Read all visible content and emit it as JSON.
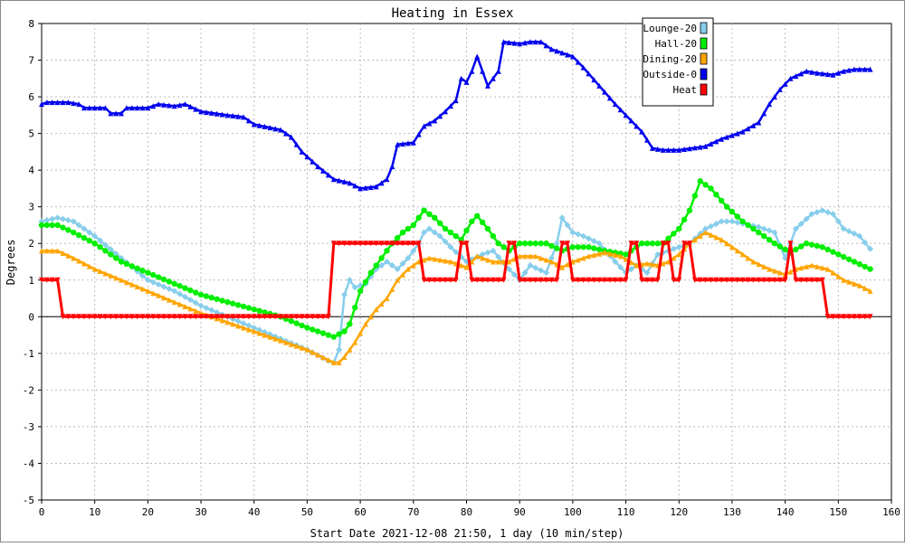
{
  "chart_data": {
    "type": "line",
    "title": "Heating in Essex",
    "xlabel": "Start Date 2021-12-08 21:50, 1 day (10 min/step)",
    "ylabel": "Degrees",
    "xlim": [
      0,
      160
    ],
    "ylim": [
      -5,
      8
    ],
    "xticks": [
      0,
      10,
      20,
      30,
      40,
      50,
      60,
      70,
      80,
      90,
      100,
      110,
      120,
      130,
      140,
      150,
      160
    ],
    "yticks": [
      -5,
      -4,
      -3,
      -2,
      -1,
      0,
      1,
      2,
      3,
      4,
      5,
      6,
      7,
      8
    ],
    "grid": true,
    "legend_position": "top-right",
    "series": [
      {
        "name": "Lounge-20",
        "color": "#87ceeb",
        "marker": "diamond",
        "points": [
          [
            0,
            2.6
          ],
          [
            3,
            2.7
          ],
          [
            6,
            2.6
          ],
          [
            10,
            2.2
          ],
          [
            15,
            1.6
          ],
          [
            20,
            1.0
          ],
          [
            25,
            0.7
          ],
          [
            30,
            0.3
          ],
          [
            35,
            0.0
          ],
          [
            40,
            -0.3
          ],
          [
            45,
            -0.6
          ],
          [
            50,
            -0.9
          ],
          [
            54,
            -1.2
          ],
          [
            55,
            -1.25
          ],
          [
            56,
            -0.9
          ],
          [
            57,
            0.6
          ],
          [
            58,
            1.0
          ],
          [
            59,
            0.8
          ],
          [
            61,
            0.9
          ],
          [
            63,
            1.3
          ],
          [
            65,
            1.5
          ],
          [
            67,
            1.3
          ],
          [
            69,
            1.6
          ],
          [
            71,
            2.0
          ],
          [
            72,
            2.3
          ],
          [
            73,
            2.4
          ],
          [
            75,
            2.2
          ],
          [
            77,
            1.9
          ],
          [
            80,
            1.5
          ],
          [
            83,
            1.7
          ],
          [
            85,
            1.8
          ],
          [
            88,
            1.3
          ],
          [
            90,
            1.0
          ],
          [
            92,
            1.4
          ],
          [
            95,
            1.2
          ],
          [
            97,
            2.0
          ],
          [
            98,
            2.7
          ],
          [
            100,
            2.3
          ],
          [
            102,
            2.2
          ],
          [
            105,
            2.0
          ],
          [
            108,
            1.5
          ],
          [
            110,
            1.2
          ],
          [
            112,
            1.4
          ],
          [
            114,
            1.2
          ],
          [
            116,
            1.7
          ],
          [
            118,
            1.8
          ],
          [
            120,
            1.9
          ],
          [
            122,
            2.0
          ],
          [
            125,
            2.4
          ],
          [
            128,
            2.6
          ],
          [
            130,
            2.6
          ],
          [
            135,
            2.45
          ],
          [
            138,
            2.3
          ],
          [
            140,
            1.6
          ],
          [
            142,
            2.4
          ],
          [
            145,
            2.8
          ],
          [
            147,
            2.9
          ],
          [
            149,
            2.8
          ],
          [
            151,
            2.4
          ],
          [
            154,
            2.2
          ],
          [
            156,
            1.85
          ]
        ]
      },
      {
        "name": "Hall-20",
        "color": "#00ee00",
        "marker": "circle",
        "points": [
          [
            0,
            2.5
          ],
          [
            3,
            2.5
          ],
          [
            6,
            2.3
          ],
          [
            10,
            2.0
          ],
          [
            15,
            1.5
          ],
          [
            20,
            1.2
          ],
          [
            25,
            0.9
          ],
          [
            30,
            0.6
          ],
          [
            35,
            0.4
          ],
          [
            40,
            0.2
          ],
          [
            45,
            0.0
          ],
          [
            50,
            -0.3
          ],
          [
            55,
            -0.55
          ],
          [
            57,
            -0.4
          ],
          [
            58,
            -0.2
          ],
          [
            60,
            0.7
          ],
          [
            62,
            1.2
          ],
          [
            64,
            1.6
          ],
          [
            66,
            2.0
          ],
          [
            68,
            2.3
          ],
          [
            70,
            2.5
          ],
          [
            72,
            2.9
          ],
          [
            74,
            2.7
          ],
          [
            76,
            2.4
          ],
          [
            79,
            2.1
          ],
          [
            81,
            2.6
          ],
          [
            82,
            2.75
          ],
          [
            84,
            2.4
          ],
          [
            86,
            2.0
          ],
          [
            88,
            1.8
          ],
          [
            90,
            2.0
          ],
          [
            93,
            2.0
          ],
          [
            95,
            2.0
          ],
          [
            98,
            1.8
          ],
          [
            100,
            1.9
          ],
          [
            103,
            1.9
          ],
          [
            106,
            1.8
          ],
          [
            110,
            1.7
          ],
          [
            113,
            2.0
          ],
          [
            117,
            2.0
          ],
          [
            120,
            2.4
          ],
          [
            122,
            2.9
          ],
          [
            124,
            3.7
          ],
          [
            126,
            3.5
          ],
          [
            129,
            3.0
          ],
          [
            132,
            2.6
          ],
          [
            135,
            2.3
          ],
          [
            138,
            2.0
          ],
          [
            141,
            1.75
          ],
          [
            144,
            2.0
          ],
          [
            147,
            1.9
          ],
          [
            150,
            1.7
          ],
          [
            153,
            1.5
          ],
          [
            156,
            1.3
          ]
        ]
      },
      {
        "name": "Dining-20",
        "color": "#ffa500",
        "marker": "triangle",
        "points": [
          [
            0,
            1.8
          ],
          [
            3,
            1.8
          ],
          [
            6,
            1.6
          ],
          [
            10,
            1.3
          ],
          [
            15,
            1.0
          ],
          [
            20,
            0.7
          ],
          [
            25,
            0.4
          ],
          [
            30,
            0.1
          ],
          [
            35,
            -0.15
          ],
          [
            40,
            -0.4
          ],
          [
            45,
            -0.65
          ],
          [
            50,
            -0.9
          ],
          [
            55,
            -1.25
          ],
          [
            56,
            -1.25
          ],
          [
            57,
            -1.1
          ],
          [
            59,
            -0.7
          ],
          [
            61,
            -0.2
          ],
          [
            63,
            0.2
          ],
          [
            65,
            0.5
          ],
          [
            67,
            1.0
          ],
          [
            69,
            1.3
          ],
          [
            71,
            1.5
          ],
          [
            73,
            1.6
          ],
          [
            77,
            1.5
          ],
          [
            80,
            1.35
          ],
          [
            82,
            1.65
          ],
          [
            85,
            1.5
          ],
          [
            88,
            1.5
          ],
          [
            90,
            1.65
          ],
          [
            93,
            1.65
          ],
          [
            96,
            1.5
          ],
          [
            98,
            1.35
          ],
          [
            100,
            1.5
          ],
          [
            103,
            1.65
          ],
          [
            106,
            1.75
          ],
          [
            109,
            1.65
          ],
          [
            112,
            1.4
          ],
          [
            114,
            1.45
          ],
          [
            116,
            1.4
          ],
          [
            118,
            1.5
          ],
          [
            120,
            1.7
          ],
          [
            122,
            2.0
          ],
          [
            125,
            2.3
          ],
          [
            128,
            2.1
          ],
          [
            131,
            1.8
          ],
          [
            134,
            1.5
          ],
          [
            137,
            1.3
          ],
          [
            140,
            1.15
          ],
          [
            142,
            1.3
          ],
          [
            145,
            1.4
          ],
          [
            148,
            1.3
          ],
          [
            151,
            1.0
          ],
          [
            154,
            0.85
          ],
          [
            156,
            0.7
          ]
        ]
      },
      {
        "name": "Outside-0",
        "color": "#0000ee",
        "marker": "triangle",
        "points": [
          [
            0,
            5.8
          ],
          [
            1,
            5.85
          ],
          [
            5,
            5.85
          ],
          [
            7,
            5.8
          ],
          [
            8,
            5.7
          ],
          [
            12,
            5.7
          ],
          [
            13,
            5.55
          ],
          [
            15,
            5.55
          ],
          [
            16,
            5.7
          ],
          [
            20,
            5.7
          ],
          [
            22,
            5.8
          ],
          [
            25,
            5.75
          ],
          [
            27,
            5.8
          ],
          [
            30,
            5.6
          ],
          [
            35,
            5.5
          ],
          [
            38,
            5.45
          ],
          [
            40,
            5.25
          ],
          [
            45,
            5.1
          ],
          [
            47,
            4.9
          ],
          [
            49,
            4.5
          ],
          [
            52,
            4.1
          ],
          [
            55,
            3.75
          ],
          [
            58,
            3.65
          ],
          [
            60,
            3.5
          ],
          [
            63,
            3.55
          ],
          [
            65,
            3.75
          ],
          [
            66,
            4.1
          ],
          [
            67,
            4.7
          ],
          [
            70,
            4.75
          ],
          [
            72,
            5.2
          ],
          [
            74,
            5.35
          ],
          [
            76,
            5.6
          ],
          [
            78,
            5.9
          ],
          [
            79,
            6.5
          ],
          [
            80,
            6.4
          ],
          [
            81,
            6.7
          ],
          [
            82,
            7.1
          ],
          [
            84,
            6.3
          ],
          [
            86,
            6.7
          ],
          [
            87,
            7.5
          ],
          [
            90,
            7.45
          ],
          [
            92,
            7.5
          ],
          [
            94,
            7.5
          ],
          [
            96,
            7.3
          ],
          [
            98,
            7.2
          ],
          [
            100,
            7.1
          ],
          [
            102,
            6.8
          ],
          [
            105,
            6.3
          ],
          [
            108,
            5.8
          ],
          [
            110,
            5.5
          ],
          [
            113,
            5.05
          ],
          [
            115,
            4.6
          ],
          [
            117,
            4.55
          ],
          [
            120,
            4.55
          ],
          [
            125,
            4.65
          ],
          [
            128,
            4.85
          ],
          [
            130,
            4.95
          ],
          [
            132,
            5.05
          ],
          [
            135,
            5.3
          ],
          [
            137,
            5.8
          ],
          [
            139,
            6.2
          ],
          [
            141,
            6.5
          ],
          [
            144,
            6.7
          ],
          [
            146,
            6.65
          ],
          [
            149,
            6.6
          ],
          [
            151,
            6.7
          ],
          [
            153,
            6.75
          ],
          [
            156,
            6.75
          ]
        ]
      },
      {
        "name": "Heat",
        "color": "#ff0000",
        "marker": "triangle-down",
        "points": [
          [
            0,
            1
          ],
          [
            3,
            1
          ],
          [
            4,
            0
          ],
          [
            54,
            0
          ],
          [
            55,
            2
          ],
          [
            71,
            2
          ],
          [
            72,
            1
          ],
          [
            78,
            1
          ],
          [
            79,
            2
          ],
          [
            80,
            2
          ],
          [
            81,
            1
          ],
          [
            87,
            1
          ],
          [
            88,
            2
          ],
          [
            89,
            2
          ],
          [
            90,
            1
          ],
          [
            97,
            1
          ],
          [
            98,
            2
          ],
          [
            99,
            2
          ],
          [
            100,
            1
          ],
          [
            110,
            1
          ],
          [
            111,
            2
          ],
          [
            112,
            2
          ],
          [
            113,
            1
          ],
          [
            116,
            1
          ],
          [
            117,
            2
          ],
          [
            118,
            2
          ],
          [
            119,
            1
          ],
          [
            120,
            1
          ],
          [
            121,
            2
          ],
          [
            122,
            2
          ],
          [
            123,
            1
          ],
          [
            140,
            1
          ],
          [
            141,
            2
          ],
          [
            142,
            1
          ],
          [
            147,
            1
          ],
          [
            148,
            0
          ],
          [
            156,
            0
          ]
        ]
      }
    ]
  }
}
